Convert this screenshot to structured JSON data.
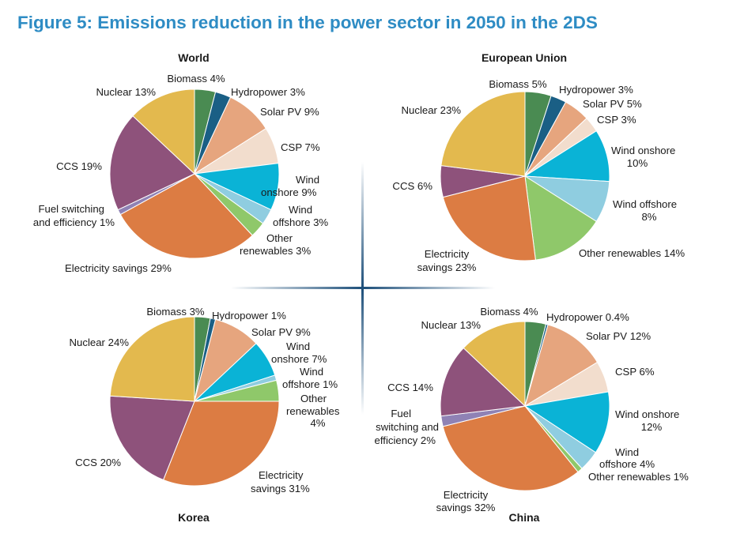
{
  "figure_title": "Figure 5: Emissions reduction in the power sector in 2050 in the 2DS",
  "colors": {
    "Biomass": "#4a8b52",
    "Hydropower": "#1a5f85",
    "Solar PV": "#e6a57e",
    "CSP": "#f2ddcd",
    "Wind onshore": "#0ab3d6",
    "Wind offshore": "#8fcde0",
    "Other renewables": "#8fc86a",
    "Electricity savings": "#dc7c43",
    "Fuel switching and efficiency": "#8f82b5",
    "CCS": "#8e527b",
    "Nuclear": "#e3b94e"
  },
  "chart_data": [
    {
      "type": "pie",
      "title": "World",
      "slices": [
        {
          "category": "Biomass",
          "value": 4,
          "label": [
            "Biomass 4%"
          ]
        },
        {
          "category": "Hydropower",
          "value": 3,
          "label": [
            "Hydropower 3%"
          ]
        },
        {
          "category": "Solar PV",
          "value": 9,
          "label": [
            "Solar PV 9%"
          ]
        },
        {
          "category": "CSP",
          "value": 7,
          "label": [
            "CSP 7%"
          ]
        },
        {
          "category": "Wind onshore",
          "value": 9,
          "label": [
            "Wind",
            "onshore 9%"
          ]
        },
        {
          "category": "Wind offshore",
          "value": 3,
          "label": [
            "Wind",
            "offshore 3%"
          ]
        },
        {
          "category": "Other renewables",
          "value": 3,
          "label": [
            "Other",
            "renewables 3%"
          ]
        },
        {
          "category": "Electricity savings",
          "value": 29,
          "label": [
            "Electricity savings 29%"
          ]
        },
        {
          "category": "Fuel switching and efficiency",
          "value": 1,
          "label": [
            "Fuel switching",
            "and efficiency 1%"
          ]
        },
        {
          "category": "CCS",
          "value": 19,
          "label": [
            "CCS 19%"
          ]
        },
        {
          "category": "Nuclear",
          "value": 13,
          "label": [
            "Nuclear 13%"
          ]
        }
      ]
    },
    {
      "type": "pie",
      "title": "European Union",
      "slices": [
        {
          "category": "Biomass",
          "value": 5,
          "label": [
            "Biomass 5%"
          ]
        },
        {
          "category": "Hydropower",
          "value": 3,
          "label": [
            "Hydropower 3%"
          ]
        },
        {
          "category": "Solar PV",
          "value": 5,
          "label": [
            "Solar PV 5%"
          ]
        },
        {
          "category": "CSP",
          "value": 3,
          "label": [
            "CSP 3%"
          ]
        },
        {
          "category": "Wind onshore",
          "value": 10,
          "label": [
            "Wind onshore",
            "10%"
          ]
        },
        {
          "category": "Wind offshore",
          "value": 8,
          "label": [
            "Wind offshore",
            "8%"
          ]
        },
        {
          "category": "Other renewables",
          "value": 14,
          "label": [
            "Other renewables 14%"
          ]
        },
        {
          "category": "Electricity savings",
          "value": 23,
          "label": [
            "Electricity",
            "savings 23%"
          ]
        },
        {
          "category": "CCS",
          "value": 6,
          "label": [
            "CCS 6%"
          ]
        },
        {
          "category": "Nuclear",
          "value": 23,
          "label": [
            "Nuclear 23%"
          ]
        }
      ]
    },
    {
      "type": "pie",
      "title": "Korea",
      "slices": [
        {
          "category": "Biomass",
          "value": 3,
          "label": [
            "Biomass 3%"
          ]
        },
        {
          "category": "Hydropower",
          "value": 1,
          "label": [
            "Hydropower 1%"
          ]
        },
        {
          "category": "Solar PV",
          "value": 9,
          "label": [
            "Solar PV 9%"
          ]
        },
        {
          "category": "Wind onshore",
          "value": 7,
          "label": [
            "Wind",
            "onshore 7%"
          ]
        },
        {
          "category": "Wind offshore",
          "value": 1,
          "label": [
            "Wind",
            "offshore 1%"
          ]
        },
        {
          "category": "Other renewables",
          "value": 4,
          "label": [
            "Other",
            "renewables",
            "4%"
          ]
        },
        {
          "category": "Electricity savings",
          "value": 31,
          "label": [
            "Electricity",
            "savings 31%"
          ]
        },
        {
          "category": "CCS",
          "value": 20,
          "label": [
            "CCS 20%"
          ]
        },
        {
          "category": "Nuclear",
          "value": 24,
          "label": [
            "Nuclear 24%"
          ]
        }
      ]
    },
    {
      "type": "pie",
      "title": "China",
      "slices": [
        {
          "category": "Biomass",
          "value": 4,
          "label": [
            "Biomass 4%"
          ]
        },
        {
          "category": "Hydropower",
          "value": 0.4,
          "label": [
            "Hydropower 0.4%"
          ]
        },
        {
          "category": "Solar PV",
          "value": 12,
          "label": [
            "Solar PV 12%"
          ]
        },
        {
          "category": "CSP",
          "value": 6,
          "label": [
            "CSP 6%"
          ]
        },
        {
          "category": "Wind onshore",
          "value": 12,
          "label": [
            "Wind onshore",
            "12%"
          ]
        },
        {
          "category": "Wind offshore",
          "value": 4,
          "label": [
            "Wind",
            "offshore 4%"
          ]
        },
        {
          "category": "Other renewables",
          "value": 1,
          "label": [
            "Other renewables 1%"
          ]
        },
        {
          "category": "Electricity savings",
          "value": 32,
          "label": [
            "Electricity",
            "savings 32%"
          ]
        },
        {
          "category": "Fuel switching and efficiency",
          "value": 2,
          "label": [
            "Fuel",
            "switching and",
            "efficiency 2%"
          ]
        },
        {
          "category": "CCS",
          "value": 14,
          "label": [
            "CCS 14%"
          ]
        },
        {
          "category": "Nuclear",
          "value": 13,
          "label": [
            "Nuclear 13%"
          ]
        }
      ]
    }
  ]
}
